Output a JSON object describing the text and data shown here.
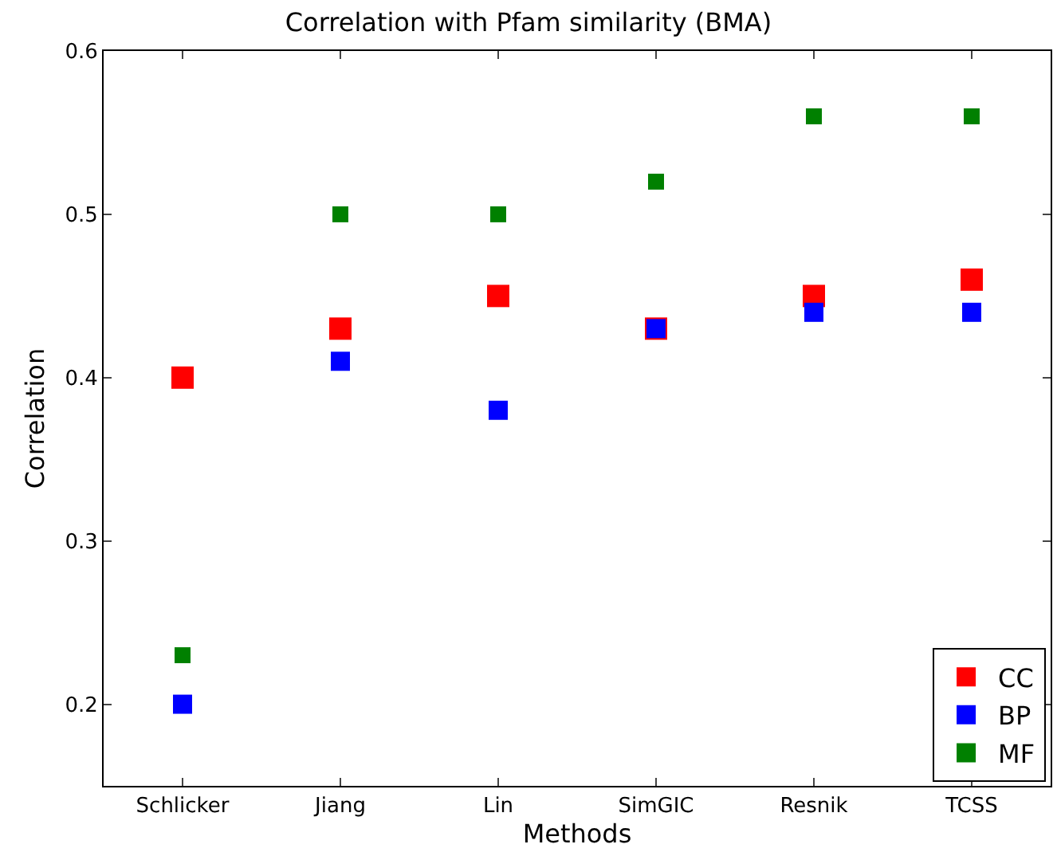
{
  "chart_data": {
    "type": "scatter",
    "title": "Correlation with Pfam similarity (BMA)",
    "xlabel": "Methods",
    "ylabel": "Correlation",
    "categories": [
      "Schlicker",
      "Jiang",
      "Lin",
      "SimGIC",
      "Resnik",
      "TCSS"
    ],
    "series": [
      {
        "name": "CC",
        "color": "#ff0000",
        "values": [
          0.4,
          0.43,
          0.45,
          0.43,
          0.45,
          0.46
        ]
      },
      {
        "name": "BP",
        "color": "#0000ff",
        "values": [
          0.2,
          0.41,
          0.38,
          0.43,
          0.44,
          0.44
        ]
      },
      {
        "name": "MF",
        "color": "#008000",
        "values": [
          0.23,
          0.5,
          0.5,
          0.52,
          0.56,
          0.56
        ]
      }
    ],
    "ylim": [
      0.15,
      0.6
    ],
    "yticks": [
      {
        "value": 0.2,
        "label": "0.2"
      },
      {
        "value": 0.3,
        "label": "0.3"
      },
      {
        "value": 0.4,
        "label": "0.4"
      },
      {
        "value": 0.5,
        "label": "0.5"
      },
      {
        "value": 0.6,
        "label": "0.6"
      }
    ],
    "marker": "square",
    "legend": "bottom right"
  }
}
